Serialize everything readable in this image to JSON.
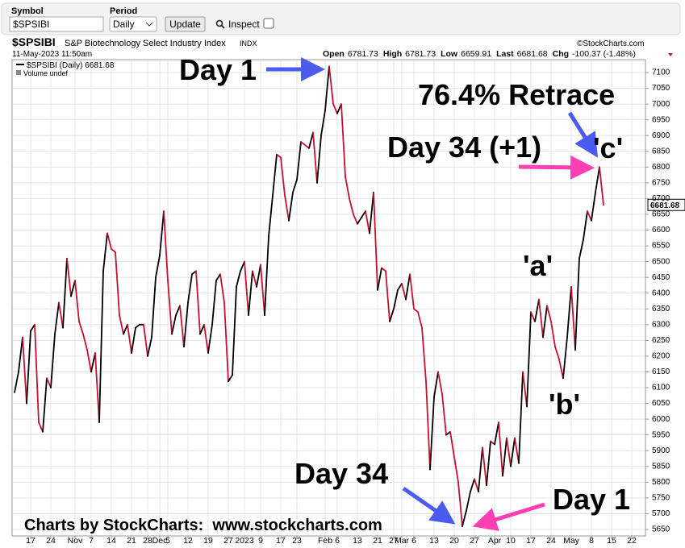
{
  "toolbar": {
    "symbol_label": "Symbol",
    "symbol_value": "$SPSIBI",
    "period_label": "Period",
    "period_value": "Daily",
    "update_button": "Update",
    "inspect_label": "Inspect"
  },
  "chart_data": {
    "type": "line",
    "title": "$SPSIBI",
    "subtitle": "S&P Biotechnology Select Industry Index",
    "exchange": "INDX",
    "timestamp": "11-May-2023 11:50am",
    "quote": [
      {
        "label": "Open",
        "value": "6781.73"
      },
      {
        "label": "High",
        "value": "6781.73"
      },
      {
        "label": "Low",
        "value": "6659.91"
      },
      {
        "label": "Last",
        "value": "6681.68"
      },
      {
        "label": "Chg",
        "value": "-100.37 (-1.48%)"
      }
    ],
    "source": "©StockCharts.com",
    "volume_note": "Volume undef",
    "last_label": "6681.68",
    "categories": [
      null,
      null,
      null,
      null,
      "17",
      null,
      null,
      null,
      null,
      "24",
      null,
      null,
      null,
      null,
      null,
      "Nov",
      null,
      null,
      null,
      "7",
      null,
      null,
      null,
      null,
      "14",
      null,
      null,
      null,
      null,
      "21",
      null,
      null,
      null,
      "28",
      null,
      null,
      "Dec",
      null,
      "5",
      null,
      null,
      null,
      null,
      "12",
      null,
      null,
      null,
      null,
      "19",
      null,
      null,
      null,
      null,
      "27",
      null,
      null,
      null,
      "2023",
      null,
      null,
      null,
      "9",
      null,
      null,
      null,
      null,
      "17",
      null,
      null,
      null,
      "23",
      null,
      null,
      null,
      null,
      null,
      null,
      "Feb",
      null,
      null,
      "6",
      null,
      null,
      null,
      null,
      "13",
      null,
      null,
      null,
      null,
      "21",
      null,
      null,
      null,
      "27",
      null,
      "Mar",
      null,
      null,
      "6",
      null,
      null,
      null,
      null,
      "13",
      null,
      null,
      null,
      null,
      "20",
      null,
      null,
      null,
      null,
      "27",
      null,
      null,
      null,
      null,
      "Apr",
      null,
      null,
      null,
      "10",
      null,
      null,
      null,
      null,
      "17",
      null,
      null,
      null,
      null,
      "24",
      null,
      null,
      null,
      null,
      "May",
      null,
      null,
      null,
      null,
      "8",
      null,
      null,
      null,
      null,
      "15",
      null,
      null,
      null,
      null,
      "22",
      null,
      null
    ],
    "series": [
      {
        "name": "$SPSIBI (Daily) 6681.68",
        "up_color": "#000000",
        "down_color": "#c8102e",
        "values": [
          6085,
          6150,
          6260,
          6050,
          6280,
          6300,
          5990,
          5960,
          6130,
          6100,
          6270,
          6370,
          6290,
          6510,
          6390,
          6440,
          6310,
          6270,
          6220,
          6150,
          6210,
          5990,
          6470,
          6590,
          6540,
          6530,
          6330,
          6270,
          6300,
          6210,
          6290,
          6300,
          6300,
          6200,
          6260,
          6450,
          6520,
          6660,
          6440,
          6270,
          6330,
          6360,
          6230,
          6370,
          6460,
          6470,
          6270,
          6300,
          6210,
          6300,
          6440,
          6460,
          6370,
          6120,
          6140,
          6420,
          6470,
          6500,
          6330,
          6470,
          6420,
          6490,
          6330,
          6580,
          6710,
          6840,
          6830,
          6710,
          6630,
          6720,
          6760,
          6880,
          6870,
          6860,
          6910,
          6750,
          6900,
          6980,
          7120,
          7000,
          6970,
          7000,
          6770,
          6700,
          6650,
          6620,
          6640,
          6660,
          6590,
          6720,
          6410,
          6480,
          6470,
          6310,
          6350,
          6410,
          6430,
          6380,
          6460,
          6350,
          6340,
          6290,
          6120,
          5840,
          6070,
          6150,
          6080,
          5950,
          5960,
          5880,
          5800,
          5660,
          5710,
          5770,
          5810,
          5770,
          5910,
          5790,
          5930,
          5920,
          5990,
          5820,
          5940,
          5850,
          5940,
          5860,
          6150,
          6040,
          6340,
          6310,
          6380,
          6260,
          6360,
          6310,
          6230,
          6190,
          6130,
          6260,
          6420,
          6220,
          6510,
          6570,
          6660,
          6630,
          6720,
          6800,
          6680,
          null,
          null,
          null,
          null,
          null,
          null,
          null,
          null,
          null
        ]
      }
    ],
    "ylim": [
      5630,
      7140
    ],
    "yticks": [
      5650,
      5700,
      5750,
      5800,
      5850,
      5900,
      5950,
      6000,
      6050,
      6100,
      6150,
      6200,
      6250,
      6300,
      6350,
      6400,
      6450,
      6500,
      6550,
      6600,
      6650,
      6700,
      6750,
      6800,
      6850,
      6900,
      6950,
      7000,
      7050,
      7100
    ],
    "grid": true,
    "annotations": [
      "Day 1",
      "76.4% Retrace",
      "Day 34 (+1)",
      "'c'",
      "'a'",
      "'b'",
      "Day 34",
      "Day 1"
    ],
    "footer": "Charts by StockCharts:  www.stockcharts.com"
  }
}
